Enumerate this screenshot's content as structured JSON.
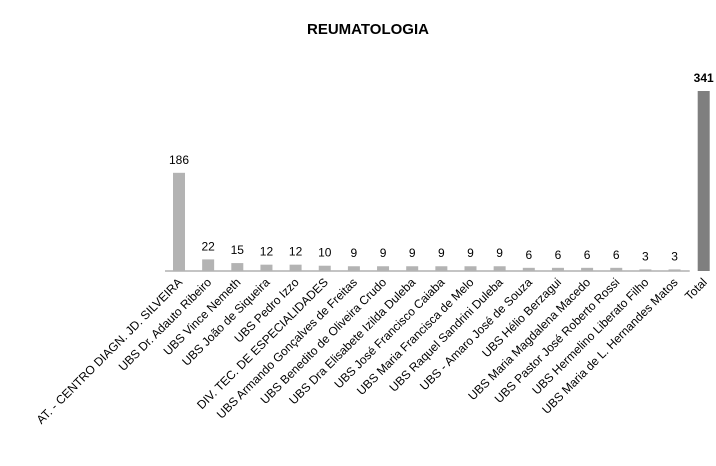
{
  "chart_data": {
    "type": "bar",
    "title": "REUMATOLOGIA",
    "categories": [
      "AT. - CENTRO DIAGN. JD. SILVEIRA",
      "UBS Dr. Adauto Ribeiro",
      "UBS Vince Nemeth",
      "UBS João de Siqueira",
      "UBS Pedro Izzo",
      "DIV. TEC. DE ESPECIALIDADES",
      "UBS Armando Gonçalves de Freitas",
      "UBS Benedito de Oliveira Crudo",
      "UBS Dra Elisabete Izilda Duleba",
      "UBS José Francisco Caiaba",
      "UBS Maria Francisca de Melo",
      "UBS Raquel Sandrini Duleba",
      "UBS - Amaro José de Souza",
      "UBS Hélio Berzagui",
      "UBS Maria Magdalena Macedo",
      "UBS Pastor José Roberto Rossi",
      "UBS Hermelino Liberato Filho",
      "UBS Maria de L. Hernandes Matos",
      "Total"
    ],
    "values": [
      186,
      22,
      15,
      12,
      12,
      10,
      9,
      9,
      9,
      9,
      9,
      9,
      6,
      6,
      6,
      6,
      3,
      3,
      341
    ],
    "colors": [
      "#b3b3b3",
      "#b3b3b3",
      "#b3b3b3",
      "#b3b3b3",
      "#b3b3b3",
      "#b3b3b3",
      "#b3b3b3",
      "#b3b3b3",
      "#b3b3b3",
      "#b3b3b3",
      "#b3b3b3",
      "#b3b3b3",
      "#b3b3b3",
      "#b3b3b3",
      "#b3b3b3",
      "#b3b3b3",
      "#b3b3b3",
      "#b3b3b3",
      "#7f7f7f"
    ],
    "ylim": [
      0,
      341
    ]
  }
}
